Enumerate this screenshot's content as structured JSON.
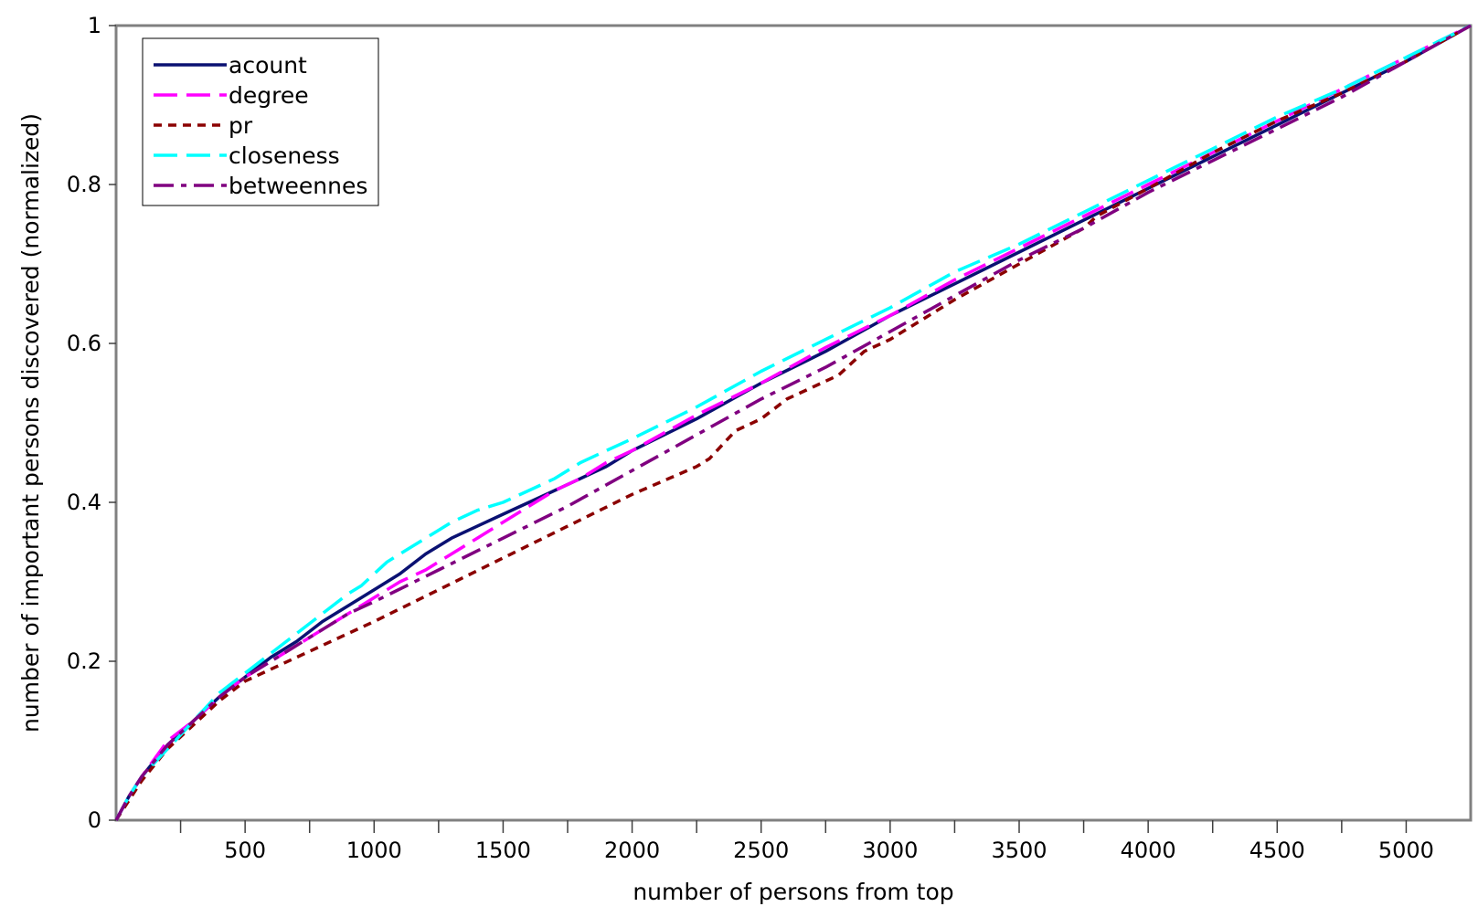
{
  "chart_data": {
    "type": "line",
    "title": "",
    "xlabel": "number of persons from top",
    "ylabel": "number of important persons discovered (normalized)",
    "xlim": [
      0,
      5250
    ],
    "ylim": [
      0,
      1
    ],
    "x_ticks": [
      500,
      1000,
      1500,
      2000,
      2500,
      3000,
      3500,
      4000,
      4500,
      5000
    ],
    "x_minor_ticks": [
      250,
      750,
      1250,
      1750,
      2250,
      2750,
      3250,
      3750,
      4250,
      4750
    ],
    "y_ticks": [
      0,
      0.2,
      0.4,
      0.6,
      0.8,
      1
    ],
    "y_tick_labels": [
      "0",
      "0.2",
      "0.4",
      "0.6",
      "0.8",
      "1"
    ],
    "grid": false,
    "legend_position": "top-left",
    "series": [
      {
        "name": "acount",
        "color": "#0a1172",
        "dash": "solid",
        "x": [
          0,
          50,
          100,
          200,
          300,
          400,
          500,
          600,
          700,
          800,
          900,
          1000,
          1100,
          1200,
          1300,
          1400,
          1500,
          1600,
          1700,
          1800,
          1900,
          2000,
          2250,
          2500,
          2750,
          3000,
          3250,
          3500,
          3750,
          4000,
          4250,
          4500,
          4750,
          5000,
          5250
        ],
        "y": [
          0,
          0.03,
          0.055,
          0.095,
          0.125,
          0.155,
          0.18,
          0.205,
          0.225,
          0.25,
          0.27,
          0.29,
          0.31,
          0.335,
          0.355,
          0.37,
          0.385,
          0.4,
          0.415,
          0.43,
          0.445,
          0.465,
          0.505,
          0.55,
          0.59,
          0.635,
          0.675,
          0.715,
          0.755,
          0.795,
          0.835,
          0.875,
          0.915,
          0.955,
          1.0
        ]
      },
      {
        "name": "degree",
        "color": "#ff00ff",
        "dash": "long-dash",
        "x": [
          0,
          50,
          100,
          200,
          300,
          400,
          500,
          600,
          700,
          800,
          900,
          1000,
          1100,
          1200,
          1300,
          1400,
          1500,
          1600,
          1700,
          1800,
          1900,
          2000,
          2250,
          2500,
          2750,
          3000,
          3250,
          3500,
          3750,
          4000,
          4250,
          4500,
          4750,
          5000,
          5250
        ],
        "y": [
          0,
          0.03,
          0.055,
          0.1,
          0.125,
          0.155,
          0.18,
          0.2,
          0.22,
          0.24,
          0.26,
          0.28,
          0.3,
          0.315,
          0.335,
          0.355,
          0.375,
          0.395,
          0.415,
          0.43,
          0.45,
          0.465,
          0.51,
          0.55,
          0.595,
          0.635,
          0.68,
          0.72,
          0.76,
          0.8,
          0.84,
          0.88,
          0.92,
          0.96,
          1.0
        ]
      },
      {
        "name": "pr",
        "color": "#8b0000",
        "dash": "short-dash",
        "x": [
          0,
          50,
          100,
          200,
          300,
          400,
          500,
          600,
          700,
          800,
          900,
          1000,
          1250,
          1500,
          1750,
          2000,
          2250,
          2300,
          2400,
          2500,
          2600,
          2800,
          2900,
          3000,
          3250,
          3500,
          3750,
          3800,
          4000,
          4250,
          4500,
          4750,
          5000,
          5250
        ],
        "y": [
          0,
          0.025,
          0.05,
          0.09,
          0.12,
          0.15,
          0.175,
          0.19,
          0.205,
          0.22,
          0.235,
          0.25,
          0.29,
          0.33,
          0.37,
          0.41,
          0.445,
          0.455,
          0.49,
          0.505,
          0.53,
          0.56,
          0.59,
          0.605,
          0.655,
          0.7,
          0.745,
          0.76,
          0.795,
          0.84,
          0.88,
          0.915,
          0.955,
          1.0
        ]
      },
      {
        "name": "closeness",
        "color": "#00ffff",
        "dash": "long-dash",
        "x": [
          0,
          50,
          100,
          200,
          300,
          400,
          500,
          600,
          700,
          800,
          900,
          950,
          1000,
          1050,
          1100,
          1150,
          1200,
          1250,
          1300,
          1400,
          1500,
          1600,
          1700,
          1800,
          1900,
          2000,
          2250,
          2500,
          2750,
          3000,
          3250,
          3500,
          3750,
          4000,
          4250,
          4500,
          4750,
          5000,
          5250
        ],
        "y": [
          0,
          0.03,
          0.055,
          0.09,
          0.125,
          0.16,
          0.185,
          0.21,
          0.235,
          0.26,
          0.285,
          0.295,
          0.31,
          0.325,
          0.335,
          0.345,
          0.355,
          0.365,
          0.375,
          0.39,
          0.4,
          0.415,
          0.43,
          0.45,
          0.465,
          0.48,
          0.52,
          0.565,
          0.605,
          0.645,
          0.69,
          0.725,
          0.765,
          0.805,
          0.845,
          0.885,
          0.92,
          0.96,
          1.0
        ]
      },
      {
        "name": "betweennes",
        "color": "#800080",
        "dash": "dash-dot",
        "x": [
          0,
          50,
          100,
          200,
          300,
          400,
          500,
          600,
          700,
          800,
          900,
          1000,
          1250,
          1500,
          1750,
          2000,
          2250,
          2500,
          2750,
          3000,
          3250,
          3500,
          3750,
          4000,
          4250,
          4500,
          4750,
          5000,
          5250
        ],
        "y": [
          0,
          0.03,
          0.055,
          0.095,
          0.125,
          0.155,
          0.18,
          0.2,
          0.22,
          0.24,
          0.26,
          0.275,
          0.315,
          0.355,
          0.395,
          0.44,
          0.485,
          0.53,
          0.57,
          0.615,
          0.66,
          0.705,
          0.745,
          0.79,
          0.83,
          0.87,
          0.91,
          0.955,
          1.0
        ]
      }
    ]
  }
}
